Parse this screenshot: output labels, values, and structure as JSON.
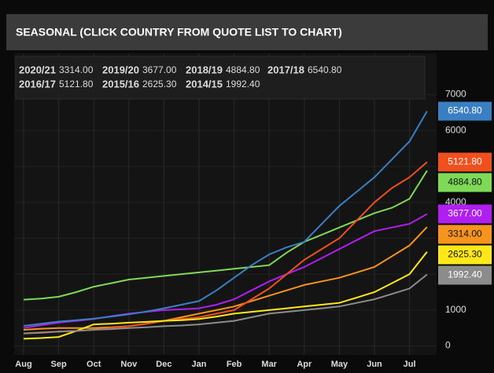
{
  "chart_data": {
    "type": "line",
    "title": "SEASONAL (CLICK COUNTRY FROM QUOTE LIST TO CHART)",
    "categories": [
      "Aug",
      null,
      "Sep",
      null,
      "Oct",
      null,
      "Nov",
      null,
      "Dec",
      null,
      "Jan",
      null,
      "Feb",
      null,
      "Mar",
      null,
      "Apr",
      null,
      "May",
      null,
      "Jun",
      null,
      "Jul",
      null
    ],
    "ylim": [
      -250,
      8150
    ],
    "yticks": [
      0,
      1000,
      2000,
      3000,
      4000,
      5000,
      6000,
      7000
    ],
    "grid": true,
    "series": [
      {
        "name": "2020/21",
        "color": "#f7941d",
        "values": [
          450,
          480,
          500,
          500,
          500,
          520,
          550,
          620,
          700,
          800,
          900,
          1000,
          1100,
          1250,
          1400,
          1550,
          1700,
          1800,
          1900,
          2050,
          2200,
          2500,
          2800,
          3314
        ],
        "value_labels": [
          null,
          null,
          null,
          null,
          null,
          null,
          null,
          null,
          null,
          null,
          null,
          null,
          null,
          null,
          null,
          null,
          null,
          null,
          null,
          null,
          null,
          null,
          null,
          "3314.00"
        ]
      },
      {
        "name": "2019/20",
        "color": "#b01ef0",
        "values": [
          500,
          580,
          650,
          700,
          750,
          830,
          900,
          950,
          1000,
          1020,
          1050,
          1150,
          1300,
          1550,
          1800,
          2000,
          2200,
          2450,
          2700,
          2950,
          3200,
          3300,
          3400,
          3677
        ],
        "value_labels": [
          null,
          null,
          null,
          null,
          null,
          null,
          null,
          null,
          null,
          null,
          null,
          null,
          null,
          null,
          null,
          null,
          null,
          null,
          null,
          null,
          null,
          null,
          null,
          "3677.00"
        ]
      },
      {
        "name": "2018/19",
        "color": "#7ed957",
        "values": [
          1290,
          1320,
          1370,
          1500,
          1650,
          1750,
          1850,
          1900,
          1950,
          2000,
          2050,
          2100,
          2150,
          2200,
          2250,
          2600,
          2900,
          3100,
          3300,
          3500,
          3700,
          3850,
          4100,
          4884.8
        ],
        "value_labels": [
          null,
          null,
          null,
          null,
          null,
          null,
          null,
          null,
          null,
          null,
          null,
          null,
          null,
          null,
          null,
          null,
          null,
          null,
          null,
          null,
          null,
          null,
          null,
          "4884.80"
        ]
      },
      {
        "name": "2017/18",
        "color": "#3a7fc1",
        "values": [
          560,
          620,
          680,
          720,
          760,
          820,
          880,
          960,
          1050,
          1150,
          1250,
          1550,
          1900,
          2250,
          2550,
          2750,
          2900,
          3400,
          3900,
          4300,
          4700,
          5200,
          5700,
          6540.8
        ],
        "value_labels": [
          null,
          null,
          null,
          null,
          null,
          null,
          null,
          null,
          null,
          null,
          null,
          null,
          null,
          null,
          null,
          null,
          null,
          null,
          null,
          null,
          null,
          null,
          null,
          "6540.80"
        ]
      },
      {
        "name": "2016/17",
        "color": "#f0501e",
        "values": [
          350,
          380,
          400,
          420,
          450,
          500,
          550,
          620,
          700,
          750,
          800,
          900,
          1000,
          1300,
          1600,
          2000,
          2400,
          2700,
          3000,
          3500,
          4000,
          4400,
          4700,
          5121.8
        ],
        "value_labels": [
          null,
          null,
          null,
          null,
          null,
          null,
          null,
          null,
          null,
          null,
          null,
          null,
          null,
          null,
          null,
          null,
          null,
          null,
          null,
          null,
          null,
          null,
          null,
          "5121.80"
        ]
      },
      {
        "name": "2015/16",
        "color": "#ffe81a",
        "values": [
          200,
          220,
          250,
          420,
          600,
          620,
          650,
          670,
          700,
          720,
          750,
          820,
          900,
          950,
          1000,
          1050,
          1100,
          1150,
          1200,
          1350,
          1500,
          1750,
          2000,
          2625.3
        ],
        "value_labels": [
          null,
          null,
          null,
          null,
          null,
          null,
          null,
          null,
          null,
          null,
          null,
          null,
          null,
          null,
          null,
          null,
          null,
          null,
          null,
          null,
          null,
          null,
          null,
          "2625.30"
        ]
      },
      {
        "name": "2014/15",
        "color": "#8c8c8c",
        "values": [
          350,
          370,
          400,
          420,
          450,
          470,
          500,
          520,
          550,
          570,
          600,
          650,
          700,
          800,
          900,
          950,
          1000,
          1050,
          1100,
          1200,
          1300,
          1450,
          1600,
          1992.4
        ],
        "value_labels": [
          null,
          null,
          null,
          null,
          null,
          null,
          null,
          null,
          null,
          null,
          null,
          null,
          null,
          null,
          null,
          null,
          null,
          null,
          null,
          null,
          null,
          null,
          null,
          "1992.40"
        ]
      }
    ]
  }
}
